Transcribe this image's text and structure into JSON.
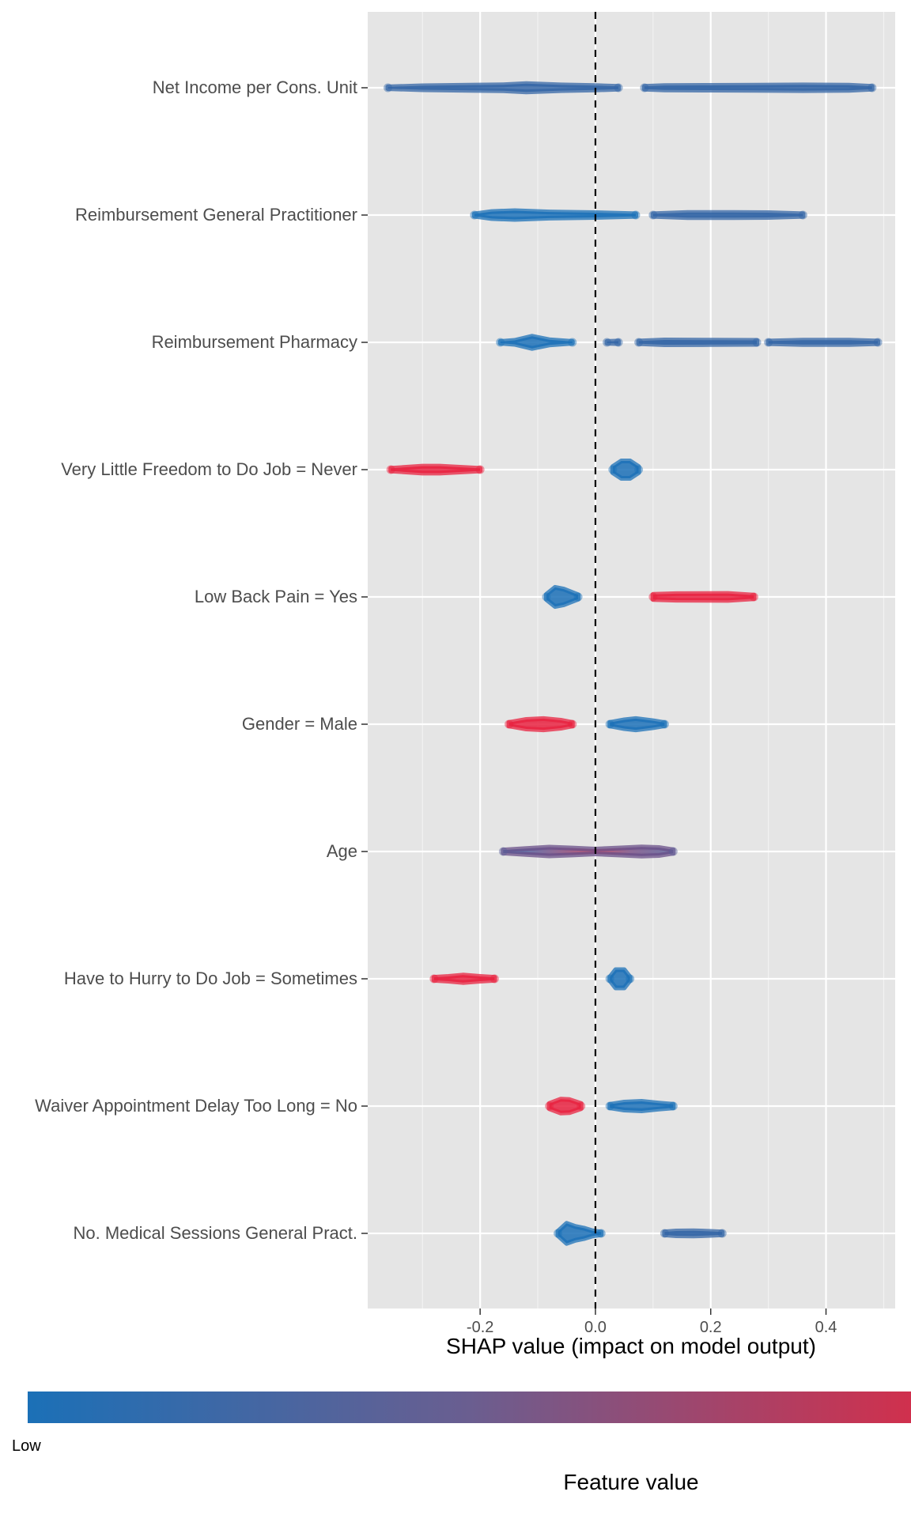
{
  "chart_data": {
    "type": "scatter",
    "subtype": "shap-summary-beeswarm",
    "xlabel": "SHAP value (impact on model output)",
    "xlim": [
      -0.395,
      0.52
    ],
    "x_ticks": [
      -0.2,
      0.0,
      0.2,
      0.4
    ],
    "x_tick_labels": [
      "-0.2",
      "0.0",
      "0.2",
      "0.4"
    ],
    "reference_line": {
      "x": 0.0,
      "style": "dashed"
    },
    "grid": true,
    "colorbar": {
      "title": "Feature value",
      "low_label": "Low",
      "low_color": "#1b70b7",
      "high_color": "#d0304d"
    },
    "colors": {
      "low": "#1b70b7",
      "high": "#e8213f",
      "mid": "#6a5e90"
    },
    "features": [
      {
        "name": "Net Income per Cons. Unit",
        "segments": [
          {
            "color": "mixed-blue",
            "profile": [
              [
                -0.36,
                0.2
              ],
              [
                -0.3,
                0.45
              ],
              [
                -0.22,
                0.6
              ],
              [
                -0.16,
                0.7
              ],
              [
                -0.12,
                0.95
              ],
              [
                -0.06,
                0.65
              ],
              [
                0.0,
                0.5
              ],
              [
                0.04,
                0.3
              ]
            ]
          },
          {
            "color": "mixed-blue",
            "profile": [
              [
                0.085,
                0.3
              ],
              [
                0.12,
                0.5
              ],
              [
                0.2,
                0.55
              ],
              [
                0.28,
                0.6
              ],
              [
                0.36,
                0.65
              ],
              [
                0.44,
                0.6
              ],
              [
                0.48,
                0.3
              ]
            ]
          }
        ]
      },
      {
        "name": "Reimbursement General Practitioner",
        "segments": [
          {
            "color": "low",
            "profile": [
              [
                -0.21,
                0.25
              ],
              [
                -0.18,
                0.8
              ],
              [
                -0.14,
                1.0
              ],
              [
                -0.08,
                0.7
              ],
              [
                0.0,
                0.55
              ],
              [
                0.07,
                0.3
              ]
            ]
          },
          {
            "color": "mixed-blue",
            "profile": [
              [
                0.1,
                0.3
              ],
              [
                0.16,
                0.6
              ],
              [
                0.24,
                0.6
              ],
              [
                0.3,
                0.55
              ],
              [
                0.36,
                0.3
              ]
            ]
          }
        ]
      },
      {
        "name": "Reimbursement Pharmacy",
        "segments": [
          {
            "color": "low",
            "profile": [
              [
                -0.165,
                0.2
              ],
              [
                -0.14,
                0.45
              ],
              [
                -0.11,
                1.4
              ],
              [
                -0.08,
                0.6
              ],
              [
                -0.04,
                0.2
              ]
            ]
          },
          {
            "color": "mixed-blue",
            "profile": [
              [
                0.02,
                0.2
              ],
              [
                0.04,
                0.3
              ]
            ]
          },
          {
            "color": "mixed-blue",
            "profile": [
              [
                0.075,
                0.3
              ],
              [
                0.12,
                0.55
              ],
              [
                0.2,
                0.5
              ],
              [
                0.28,
                0.45
              ]
            ]
          },
          {
            "color": "mixed-blue",
            "profile": [
              [
                0.3,
                0.3
              ],
              [
                0.36,
                0.5
              ],
              [
                0.44,
                0.5
              ],
              [
                0.49,
                0.3
              ]
            ]
          }
        ]
      },
      {
        "name": "Very Little Freedom to Do Job = Never",
        "segments": [
          {
            "color": "high",
            "profile": [
              [
                -0.355,
                0.3
              ],
              [
                -0.3,
                0.8
              ],
              [
                -0.27,
                0.8
              ],
              [
                -0.2,
                0.3
              ]
            ]
          },
          {
            "color": "low",
            "profile": [
              [
                0.03,
                0.7
              ],
              [
                0.045,
                2.0
              ],
              [
                0.06,
                2.0
              ],
              [
                0.075,
                0.7
              ]
            ]
          }
        ]
      },
      {
        "name": "Low Back Pain = Yes",
        "segments": [
          {
            "color": "low",
            "profile": [
              [
                -0.085,
                0.6
              ],
              [
                -0.07,
                2.2
              ],
              [
                -0.055,
                1.8
              ],
              [
                -0.03,
                0.5
              ]
            ]
          },
          {
            "color": "high",
            "profile": [
              [
                0.1,
                0.6
              ],
              [
                0.14,
                0.75
              ],
              [
                0.23,
                0.8
              ],
              [
                0.275,
                0.4
              ]
            ]
          }
        ]
      },
      {
        "name": "Gender = Male",
        "segments": [
          {
            "color": "high",
            "profile": [
              [
                -0.15,
                0.4
              ],
              [
                -0.12,
                1.1
              ],
              [
                -0.09,
                1.3
              ],
              [
                -0.06,
                0.9
              ],
              [
                -0.04,
                0.4
              ]
            ]
          },
          {
            "color": "low",
            "profile": [
              [
                0.025,
                0.4
              ],
              [
                0.05,
                1.0
              ],
              [
                0.07,
                1.3
              ],
              [
                0.1,
                0.8
              ],
              [
                0.12,
                0.35
              ]
            ]
          }
        ]
      },
      {
        "name": "Age",
        "segments": [
          {
            "color": "mixed",
            "profile": [
              [
                -0.16,
                0.35
              ],
              [
                -0.12,
                0.7
              ],
              [
                -0.08,
                1.0
              ],
              [
                -0.04,
                0.8
              ],
              [
                0.0,
                0.55
              ],
              [
                0.04,
                0.8
              ],
              [
                0.08,
                1.05
              ],
              [
                0.11,
                0.9
              ],
              [
                0.135,
                0.4
              ]
            ]
          }
        ]
      },
      {
        "name": "Have to Hurry to Do Job = Sometimes",
        "segments": [
          {
            "color": "high",
            "profile": [
              [
                -0.28,
                0.35
              ],
              [
                -0.255,
                0.55
              ],
              [
                -0.23,
                0.85
              ],
              [
                -0.2,
                0.55
              ],
              [
                -0.175,
                0.35
              ]
            ]
          },
          {
            "color": "low",
            "profile": [
              [
                0.025,
                0.4
              ],
              [
                0.035,
                2.1
              ],
              [
                0.05,
                2.1
              ],
              [
                0.06,
                0.4
              ]
            ]
          }
        ]
      },
      {
        "name": "Waiver Appointment Delay Too Long = No",
        "segments": [
          {
            "color": "high",
            "profile": [
              [
                -0.08,
                0.6
              ],
              [
                -0.06,
                1.6
              ],
              [
                -0.045,
                1.5
              ],
              [
                -0.025,
                0.6
              ]
            ]
          },
          {
            "color": "low",
            "profile": [
              [
                0.025,
                0.4
              ],
              [
                0.05,
                0.9
              ],
              [
                0.08,
                1.1
              ],
              [
                0.11,
                0.7
              ],
              [
                0.135,
                0.4
              ]
            ]
          }
        ]
      },
      {
        "name": "No. Medical Sessions General Pract.",
        "segments": [
          {
            "color": "low",
            "profile": [
              [
                -0.065,
                0.5
              ],
              [
                -0.05,
                2.3
              ],
              [
                -0.035,
                1.6
              ],
              [
                -0.02,
                1.2
              ],
              [
                -0.005,
                0.6
              ],
              [
                0.01,
                0.3
              ]
            ]
          },
          {
            "color": "mixed-blue",
            "profile": [
              [
                0.12,
                0.35
              ],
              [
                0.14,
                0.55
              ],
              [
                0.17,
                0.6
              ],
              [
                0.2,
                0.45
              ],
              [
                0.22,
                0.3
              ]
            ]
          }
        ]
      }
    ]
  }
}
